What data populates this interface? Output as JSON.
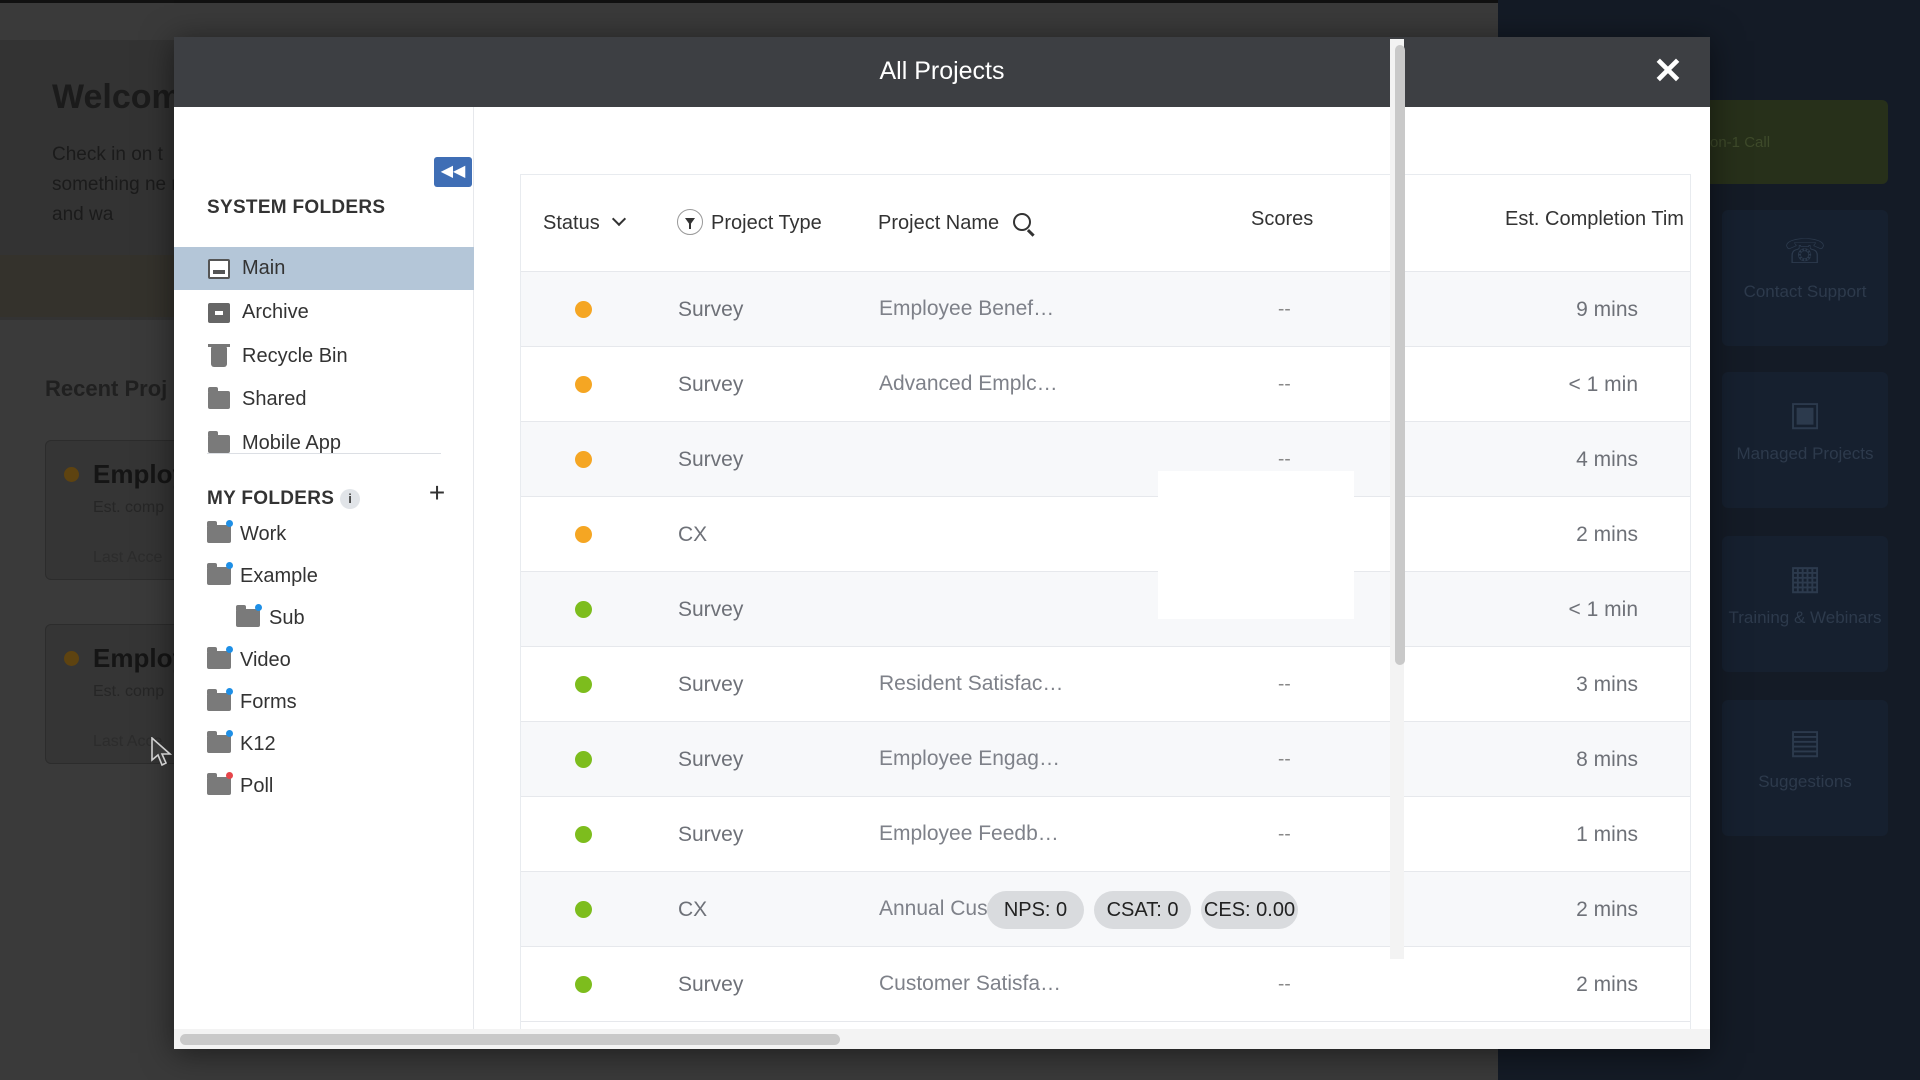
{
  "background": {
    "welcome_title": "Welcom",
    "welcome_text": "Check in on t something ne ready and wa",
    "recent_heading": "Recent Proj",
    "cards": [
      {
        "name": "Employ",
        "meta": "Est. comp",
        "meta2": "Last Acce"
      },
      {
        "name": "Employ",
        "meta": "Est. comp",
        "meta2": "Last Acce"
      }
    ],
    "call_button": "on-1 Call",
    "tiles": [
      {
        "label": "Contact Support",
        "icon": "headset-icon"
      },
      {
        "label": "Managed Projects",
        "icon": "briefcase-icon"
      },
      {
        "label": "Training & Webinars",
        "icon": "presentation-icon"
      },
      {
        "label": "Suggestions",
        "icon": "chat-icon"
      }
    ]
  },
  "modal": {
    "title": "All Projects",
    "close_icon": "close-icon"
  },
  "sidebar": {
    "system_heading": "SYSTEM FOLDERS",
    "collapse_icon": "double-chevron-left-icon",
    "system_items": [
      {
        "label": "Main",
        "icon": "inbox-icon"
      },
      {
        "label": "Archive",
        "icon": "archive-icon"
      },
      {
        "label": "Recycle Bin",
        "icon": "trash-icon"
      },
      {
        "label": "Shared",
        "icon": "folder-icon"
      },
      {
        "label": "Mobile App",
        "icon": "folder-icon"
      }
    ],
    "my_heading": "MY FOLDERS",
    "my_items": [
      {
        "label": "Work",
        "tag_color": "#1e8fe6"
      },
      {
        "label": "Example",
        "tag_color": "#1e8fe6"
      },
      {
        "label": "Sub",
        "tag_color": "#1e8fe6"
      },
      {
        "label": "Video",
        "tag_color": "#1e8fe6"
      },
      {
        "label": "Forms",
        "tag_color": "#1e8fe6"
      },
      {
        "label": "K12",
        "tag_color": "#1e8fe6"
      },
      {
        "label": "Poll",
        "tag_color": "#e6454a"
      }
    ]
  },
  "table": {
    "columns": {
      "status": "Status",
      "project_type": "Project Type",
      "project_name": "Project Name",
      "scores": "Scores",
      "completion": "Est. Completion Tim"
    },
    "status_colors": {
      "in_progress": "#f5a623",
      "active": "#7dbd1d"
    },
    "rows": [
      {
        "status": "in_progress",
        "type": "Survey",
        "name": "Employee Benef…",
        "scores": "--",
        "time": "9 mins"
      },
      {
        "status": "in_progress",
        "type": "Survey",
        "name": "Advanced Emplc…",
        "scores": "--",
        "time": "< 1 min"
      },
      {
        "status": "in_progress",
        "type": "Survey",
        "name": "",
        "scores": "--",
        "time": "4 mins"
      },
      {
        "status": "in_progress",
        "type": "CX",
        "name": "",
        "scores": "--",
        "time": "2 mins"
      },
      {
        "status": "active",
        "type": "Survey",
        "name": "",
        "scores": "--",
        "time": "< 1 min"
      },
      {
        "status": "active",
        "type": "Survey",
        "name": "Resident Satisfac…",
        "scores": "--",
        "time": "3 mins"
      },
      {
        "status": "active",
        "type": "Survey",
        "name": "Employee Engag…",
        "scores": "--",
        "time": "8 mins"
      },
      {
        "status": "active",
        "type": "Survey",
        "name": "Employee Feedb…",
        "scores": "--",
        "time": "1 mins"
      },
      {
        "status": "active",
        "type": "CX",
        "name": "Annual Custome…",
        "scores": "",
        "time": "2 mins",
        "pills": [
          "NPS: 0",
          "CSAT: 0",
          "CES: 0.00"
        ]
      },
      {
        "status": "active",
        "type": "Survey",
        "name": "Customer Satisfa…",
        "scores": "--",
        "time": "2 mins"
      }
    ]
  }
}
